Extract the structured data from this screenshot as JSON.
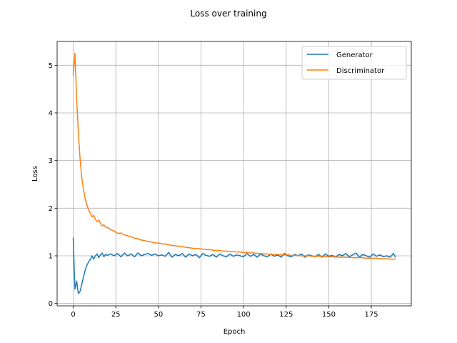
{
  "chart_data": {
    "type": "line",
    "title": "Loss over training",
    "xlabel": "Epoch",
    "ylabel": "Loss",
    "xlim": [
      -9.45,
      198.45
    ],
    "ylim": [
      -0.05,
      5.5
    ],
    "xticks": [
      0,
      25,
      50,
      75,
      100,
      125,
      150,
      175
    ],
    "yticks": [
      0,
      1,
      2,
      3,
      4,
      5
    ],
    "grid": true,
    "legend_position": "top-right",
    "series": [
      {
        "name": "Generator",
        "color": "#1f77b4",
        "x": [
          0,
          1,
          2,
          3,
          4,
          5,
          6,
          7,
          8,
          9,
          10,
          11,
          12,
          13,
          14,
          15,
          16,
          17,
          18,
          19,
          20,
          22,
          24,
          26,
          28,
          30,
          32,
          34,
          36,
          38,
          40,
          42,
          44,
          46,
          48,
          50,
          52,
          54,
          56,
          58,
          60,
          62,
          64,
          66,
          68,
          70,
          72,
          74,
          76,
          78,
          80,
          82,
          84,
          86,
          88,
          90,
          92,
          94,
          96,
          98,
          100,
          102,
          104,
          106,
          108,
          110,
          112,
          114,
          116,
          118,
          120,
          122,
          124,
          126,
          128,
          130,
          132,
          134,
          136,
          138,
          140,
          142,
          144,
          146,
          148,
          150,
          152,
          154,
          156,
          158,
          160,
          162,
          164,
          166,
          168,
          170,
          172,
          174,
          176,
          178,
          180,
          182,
          184,
          186,
          188,
          189
        ],
        "y": [
          1.37,
          0.3,
          0.47,
          0.21,
          0.25,
          0.4,
          0.55,
          0.7,
          0.8,
          0.87,
          0.92,
          1.0,
          0.93,
          1.0,
          1.04,
          0.96,
          1.02,
          1.06,
          0.98,
          1.03,
          1.01,
          1.04,
          1.0,
          1.05,
          0.98,
          1.06,
          1.0,
          1.04,
          0.98,
          1.06,
          1.0,
          1.03,
          1.05,
          1.01,
          1.04,
          1.0,
          1.02,
          0.99,
          1.07,
          0.97,
          1.03,
          1.0,
          1.05,
          0.97,
          1.04,
          1.0,
          1.03,
          0.96,
          1.05,
          1.01,
          0.99,
          1.03,
          0.97,
          1.04,
          1.0,
          0.98,
          1.04,
          0.99,
          1.02,
          1.0,
          0.98,
          1.05,
          0.99,
          1.03,
          0.97,
          1.04,
          1.0,
          0.98,
          1.04,
          0.99,
          1.02,
          0.97,
          1.05,
          1.0,
          0.98,
          1.03,
          1.0,
          1.04,
          0.97,
          1.02,
          1.0,
          0.98,
          1.03,
          0.97,
          1.04,
          0.99,
          1.01,
          0.97,
          1.03,
          1.0,
          1.05,
          0.98,
          1.02,
          1.06,
          0.97,
          1.03,
          1.0,
          0.97,
          1.04,
          0.99,
          1.02,
          0.98,
          1.0,
          0.97,
          1.05,
          0.98
        ]
      },
      {
        "name": "Discriminator",
        "color": "#ff7f0e",
        "x": [
          0,
          1,
          2,
          3,
          4,
          5,
          6,
          7,
          8,
          9,
          10,
          11,
          12,
          13,
          14,
          15,
          16,
          17,
          18,
          19,
          20,
          22,
          24,
          26,
          28,
          30,
          32,
          34,
          36,
          38,
          40,
          42,
          44,
          46,
          48,
          50,
          52,
          54,
          56,
          58,
          60,
          62,
          64,
          66,
          68,
          70,
          72,
          74,
          76,
          78,
          80,
          82,
          84,
          86,
          88,
          90,
          92,
          94,
          96,
          98,
          100,
          102,
          104,
          106,
          108,
          110,
          112,
          114,
          116,
          118,
          120,
          122,
          124,
          126,
          128,
          130,
          132,
          134,
          136,
          138,
          140,
          142,
          144,
          146,
          148,
          150,
          152,
          154,
          156,
          158,
          160,
          162,
          164,
          166,
          168,
          170,
          172,
          174,
          176,
          178,
          180,
          182,
          184,
          186,
          188,
          189
        ],
        "y": [
          4.8,
          5.25,
          4.3,
          3.6,
          3.05,
          2.65,
          2.4,
          2.2,
          2.07,
          1.97,
          1.9,
          1.82,
          1.85,
          1.77,
          1.72,
          1.75,
          1.68,
          1.63,
          1.65,
          1.6,
          1.6,
          1.55,
          1.52,
          1.47,
          1.48,
          1.44,
          1.42,
          1.4,
          1.37,
          1.36,
          1.33,
          1.32,
          1.3,
          1.29,
          1.27,
          1.27,
          1.25,
          1.25,
          1.23,
          1.22,
          1.21,
          1.2,
          1.19,
          1.18,
          1.17,
          1.16,
          1.15,
          1.15,
          1.14,
          1.13,
          1.13,
          1.12,
          1.11,
          1.11,
          1.1,
          1.1,
          1.09,
          1.09,
          1.08,
          1.08,
          1.07,
          1.07,
          1.06,
          1.06,
          1.05,
          1.05,
          1.04,
          1.04,
          1.03,
          1.03,
          1.03,
          1.02,
          1.02,
          1.02,
          1.01,
          1.01,
          1.01,
          1.0,
          1.0,
          1.0,
          0.99,
          0.99,
          0.99,
          0.99,
          0.98,
          0.98,
          0.98,
          0.98,
          0.97,
          0.97,
          0.97,
          0.97,
          0.96,
          0.96,
          0.96,
          0.96,
          0.95,
          0.95,
          0.95,
          0.95,
          0.94,
          0.94,
          0.94,
          0.93,
          0.93,
          0.93
        ]
      }
    ]
  }
}
